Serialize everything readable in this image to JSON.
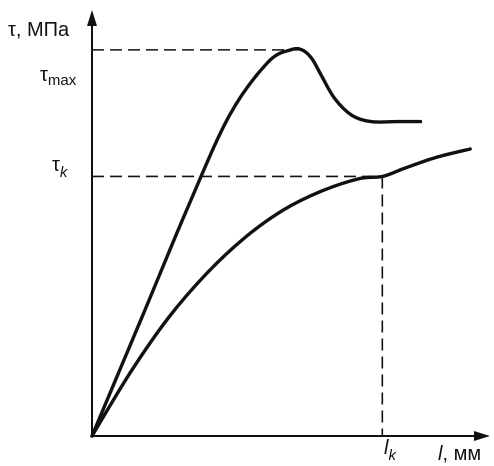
{
  "chart_data": {
    "type": "line",
    "title": "",
    "xlabel_var": "l",
    "xlabel_unit": ", мм",
    "ylabel": "τ, МПа",
    "xlim": [
      0,
      10
    ],
    "ylim": [
      0,
      10
    ],
    "grid": false,
    "legend": "none",
    "tick_labels": {
      "tau_max": {
        "base": "τ",
        "sub": "max",
        "y": 9.15
      },
      "tau_k": {
        "base": "τ",
        "sub": "k",
        "y": 6.15
      },
      "l_k": {
        "base": "l",
        "sub": "k",
        "x": 7.6
      }
    },
    "series": [
      {
        "x": [
          0,
          1.3,
          2.5,
          3.6,
          4.6,
          5.2,
          5.5,
          5.75,
          6.0,
          6.35,
          6.8,
          7.3,
          8.0,
          8.6
        ],
        "y": [
          0,
          2.8,
          5.4,
          7.6,
          8.85,
          9.15,
          9.15,
          8.95,
          8.55,
          8.0,
          7.6,
          7.45,
          7.45,
          7.45
        ]
      },
      {
        "x": [
          0,
          1.0,
          2.0,
          3.0,
          4.0,
          5.0,
          6.0,
          7.0,
          7.6,
          8.2,
          9.0,
          9.9
        ],
        "y": [
          0,
          1.5,
          2.8,
          3.85,
          4.7,
          5.35,
          5.8,
          6.1,
          6.15,
          6.35,
          6.6,
          6.8
        ]
      }
    ],
    "dashed_guides": [
      {
        "from": [
          0,
          9.15
        ],
        "to": [
          5.5,
          9.15
        ]
      },
      {
        "from": [
          0,
          6.15
        ],
        "to": [
          7.6,
          6.15
        ]
      },
      {
        "from": [
          7.6,
          6.15
        ],
        "to": [
          7.6,
          0
        ]
      }
    ],
    "colors": {
      "line": "#111111",
      "background": "#ffffff"
    }
  }
}
